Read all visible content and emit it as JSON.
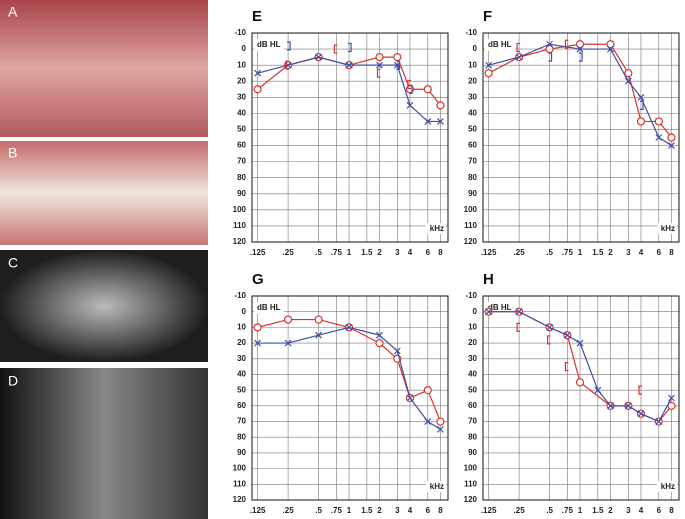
{
  "photo_labels": [
    "A",
    "B",
    "C",
    "D"
  ],
  "chart_data": [
    {
      "type": "line",
      "title": "E",
      "y_label": "dB HL",
      "x_label": "kHz",
      "xscale": "log",
      "y_inverted": true,
      "grid": true,
      "xlim": [
        0.11,
        9.5
      ],
      "ylim": [
        -10,
        120
      ],
      "xticks": [
        {
          "value": 0.125,
          "label": ".125"
        },
        {
          "value": 0.25,
          "label": ".25"
        },
        {
          "value": 0.5,
          "label": ".5"
        },
        {
          "value": 0.75,
          "label": ".75"
        },
        1,
        {
          "value": 1.5,
          "label": "1.5"
        },
        2,
        3,
        4,
        6,
        8
      ],
      "yticks": [
        -10,
        0,
        10,
        20,
        30,
        40,
        50,
        60,
        70,
        80,
        90,
        100,
        110,
        120
      ],
      "series": [
        {
          "color": "#d9342b",
          "marker": "circle",
          "line": true,
          "x": [
            0.125,
            0.25,
            0.5,
            1,
            2,
            3,
            4,
            6,
            8
          ],
          "values": [
            25,
            10,
            5,
            10,
            5,
            5,
            25,
            25,
            35
          ]
        },
        {
          "color": "#3f4fa8",
          "marker": "cross",
          "line": true,
          "x": [
            0.125,
            0.25,
            0.5,
            1,
            2,
            3,
            4,
            6,
            8
          ],
          "values": [
            15,
            10,
            5,
            10,
            10,
            10,
            35,
            45,
            45
          ]
        },
        {
          "color": "#d9342b",
          "marker": "bracket-left",
          "line": false,
          "x": [
            0.25,
            0.75,
            2,
            4
          ],
          "values": [
            10,
            0,
            15,
            22
          ]
        },
        {
          "color": "#3f4fa8",
          "marker": "bracket-right",
          "line": false,
          "x": [
            0.25,
            1,
            3,
            4
          ],
          "values": [
            -2,
            -1,
            10,
            25
          ]
        }
      ]
    },
    {
      "type": "line",
      "title": "F",
      "y_label": "dB HL",
      "x_label": "kHz",
      "xscale": "log",
      "y_inverted": true,
      "grid": true,
      "xlim": [
        0.11,
        9.5
      ],
      "ylim": [
        -10,
        120
      ],
      "xticks": [
        {
          "value": 0.125,
          "label": ".125"
        },
        {
          "value": 0.25,
          "label": ".25"
        },
        {
          "value": 0.5,
          "label": ".5"
        },
        {
          "value": 0.75,
          "label": ".75"
        },
        1,
        {
          "value": 1.5,
          "label": "1.5"
        },
        2,
        3,
        4,
        6,
        8
      ],
      "yticks": [
        -10,
        0,
        10,
        20,
        30,
        40,
        50,
        60,
        70,
        80,
        90,
        100,
        110,
        120
      ],
      "series": [
        {
          "color": "#d9342b",
          "marker": "circle",
          "line": true,
          "x": [
            0.125,
            0.25,
            0.5,
            1,
            2,
            3,
            4,
            6,
            8
          ],
          "values": [
            15,
            5,
            0,
            -3,
            -3,
            15,
            45,
            45,
            55
          ]
        },
        {
          "color": "#3f4fa8",
          "marker": "cross",
          "line": true,
          "x": [
            0.125,
            0.25,
            0.5,
            1,
            2,
            3,
            4,
            6,
            8
          ],
          "values": [
            10,
            5,
            -3,
            0,
            0,
            20,
            30,
            55,
            60
          ]
        },
        {
          "color": "#d9342b",
          "marker": "bracket-left",
          "line": false,
          "x": [
            0.25,
            0.75
          ],
          "values": [
            -1,
            -3
          ]
        },
        {
          "color": "#3f4fa8",
          "marker": "bracket-right",
          "line": false,
          "x": [
            0.5,
            1,
            4
          ],
          "values": [
            5,
            5,
            35
          ]
        }
      ]
    },
    {
      "type": "line",
      "title": "G",
      "y_label": "dB HL",
      "x_label": "kHz",
      "xscale": "log",
      "y_inverted": true,
      "grid": true,
      "xlim": [
        0.11,
        9.5
      ],
      "ylim": [
        -10,
        120
      ],
      "xticks": [
        {
          "value": 0.125,
          "label": ".125"
        },
        {
          "value": 0.25,
          "label": ".25"
        },
        {
          "value": 0.5,
          "label": ".5"
        },
        {
          "value": 0.75,
          "label": ".75"
        },
        1,
        {
          "value": 1.5,
          "label": "1.5"
        },
        2,
        3,
        4,
        6,
        8
      ],
      "yticks": [
        -10,
        0,
        10,
        20,
        30,
        40,
        50,
        60,
        70,
        80,
        90,
        100,
        110,
        120
      ],
      "series": [
        {
          "color": "#d9342b",
          "marker": "circle",
          "line": true,
          "x": [
            0.125,
            0.25,
            0.5,
            1,
            2,
            3,
            4,
            6,
            8
          ],
          "values": [
            10,
            5,
            5,
            10,
            20,
            30,
            55,
            50,
            70
          ]
        },
        {
          "color": "#3f4fa8",
          "marker": "cross",
          "line": true,
          "x": [
            0.125,
            0.25,
            0.5,
            1,
            2,
            3,
            4,
            6,
            8
          ],
          "values": [
            20,
            20,
            15,
            10,
            15,
            25,
            55,
            70,
            75
          ]
        }
      ]
    },
    {
      "type": "line",
      "title": "H",
      "y_label": "dB HL",
      "x_label": "kHz",
      "xscale": "log",
      "y_inverted": true,
      "grid": true,
      "xlim": [
        0.11,
        9.5
      ],
      "ylim": [
        -10,
        120
      ],
      "xticks": [
        {
          "value": 0.125,
          "label": ".125"
        },
        {
          "value": 0.25,
          "label": ".25"
        },
        {
          "value": 0.5,
          "label": ".5"
        },
        {
          "value": 0.75,
          "label": ".75"
        },
        1,
        {
          "value": 1.5,
          "label": "1.5"
        },
        2,
        3,
        4,
        6,
        8
      ],
      "yticks": [
        -10,
        0,
        10,
        20,
        30,
        40,
        50,
        60,
        70,
        80,
        90,
        100,
        110,
        120
      ],
      "series": [
        {
          "color": "#d9342b",
          "marker": "circle",
          "line": true,
          "x": [
            0.125,
            0.25,
            0.5,
            0.75,
            1,
            2,
            3,
            4,
            6,
            8
          ],
          "values": [
            0,
            0,
            10,
            15,
            45,
            60,
            60,
            65,
            70,
            60
          ]
        },
        {
          "color": "#3f4fa8",
          "marker": "cross",
          "line": true,
          "x": [
            0.125,
            0.25,
            0.5,
            0.75,
            1,
            1.5,
            2,
            3,
            4,
            6,
            8
          ],
          "values": [
            0,
            0,
            10,
            15,
            20,
            50,
            60,
            60,
            65,
            70,
            55
          ]
        },
        {
          "color": "#d9342b",
          "marker": "bracket-left",
          "line": false,
          "x": [
            0.25,
            0.5,
            0.75,
            4
          ],
          "values": [
            10,
            18,
            35,
            50
          ]
        }
      ]
    }
  ]
}
